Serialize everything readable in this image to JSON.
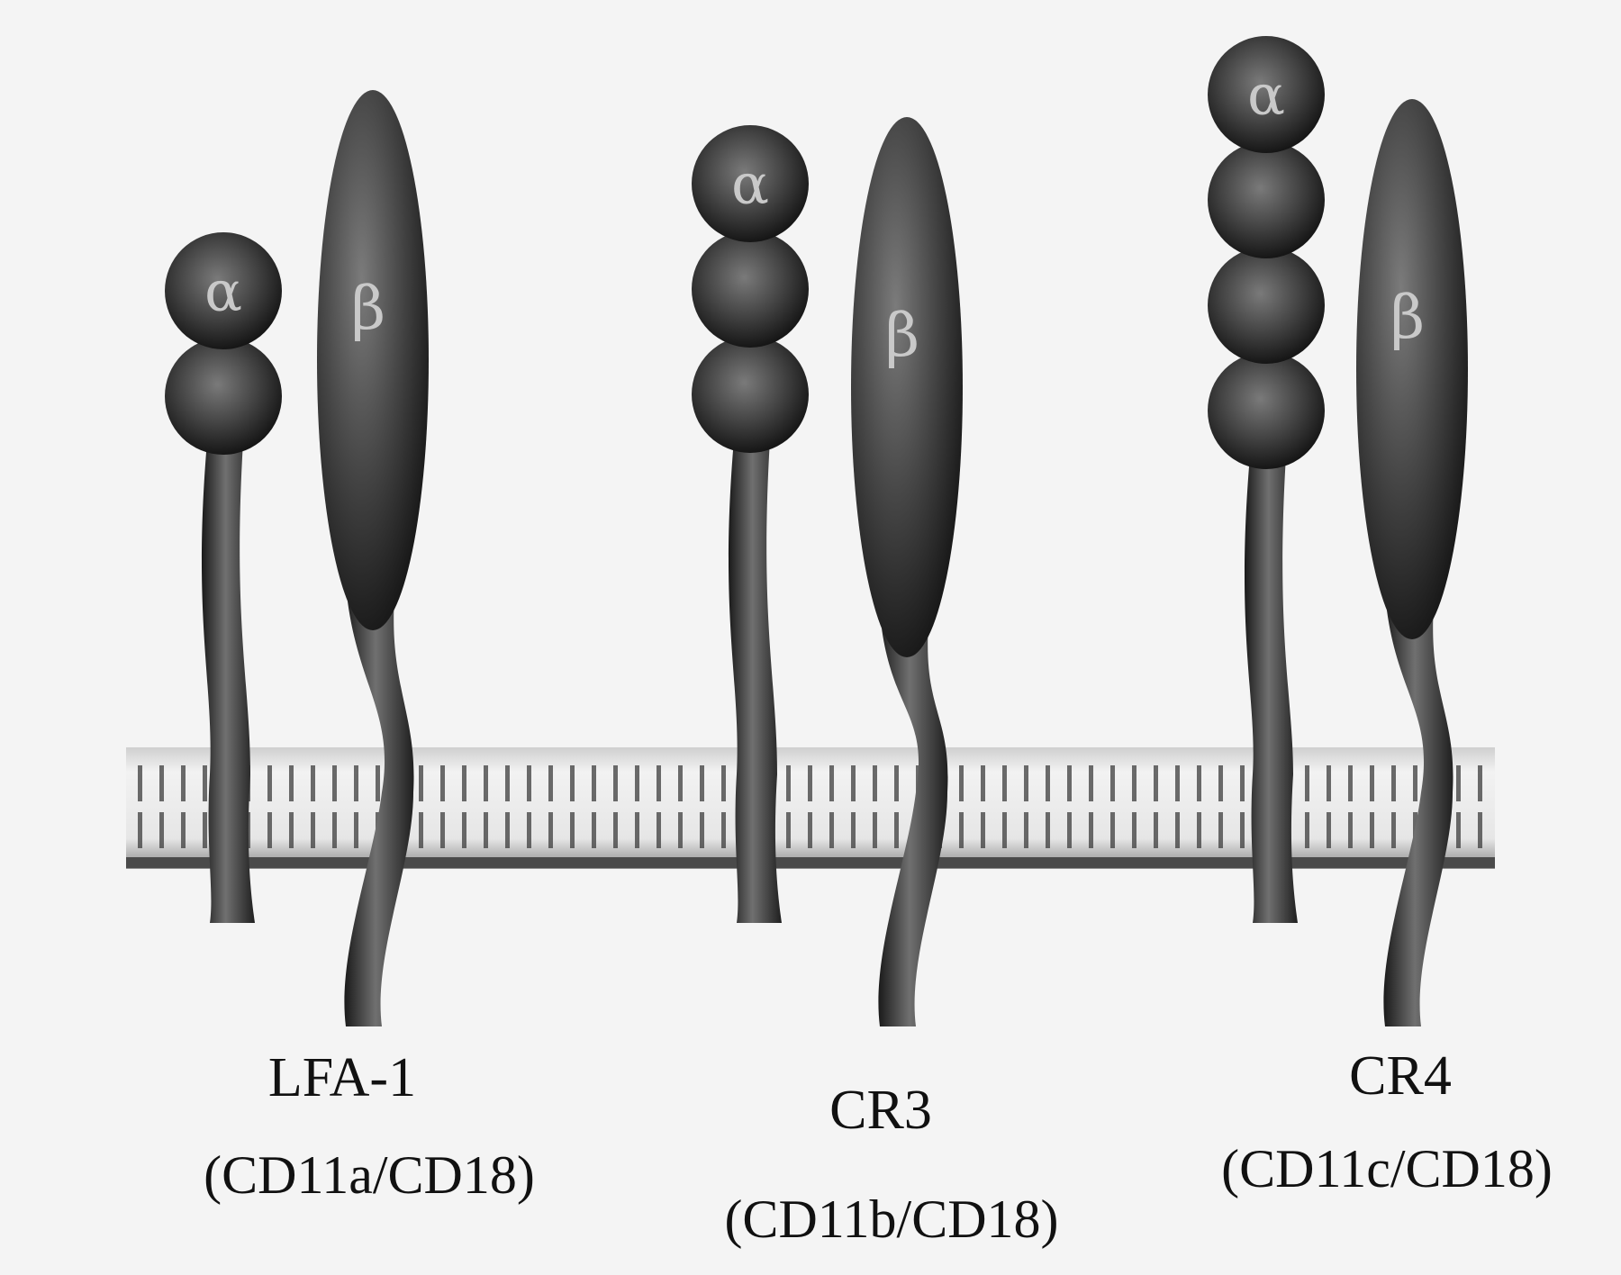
{
  "diagram": {
    "kind": "integrin-family",
    "colors": {
      "background": "#f4f4f4",
      "protein": "#3e3e3e",
      "membrane": "#e0e0e0",
      "greek_text": "#c9c9c9",
      "label": "#111111"
    },
    "integrins": [
      {
        "name": "LFA-1",
        "composition": "(CD11a/CD18)",
        "alpha_symbol": "α",
        "beta_symbol": "β",
        "alpha_domains": 2
      },
      {
        "name": "CR3",
        "composition": "(CD11b/CD18)",
        "alpha_symbol": "α",
        "beta_symbol": "β",
        "alpha_domains": 3
      },
      {
        "name": "CR4",
        "composition": "(CD11c/CD18)",
        "alpha_symbol": "α",
        "beta_symbol": "β",
        "alpha_domains": 4
      }
    ]
  }
}
